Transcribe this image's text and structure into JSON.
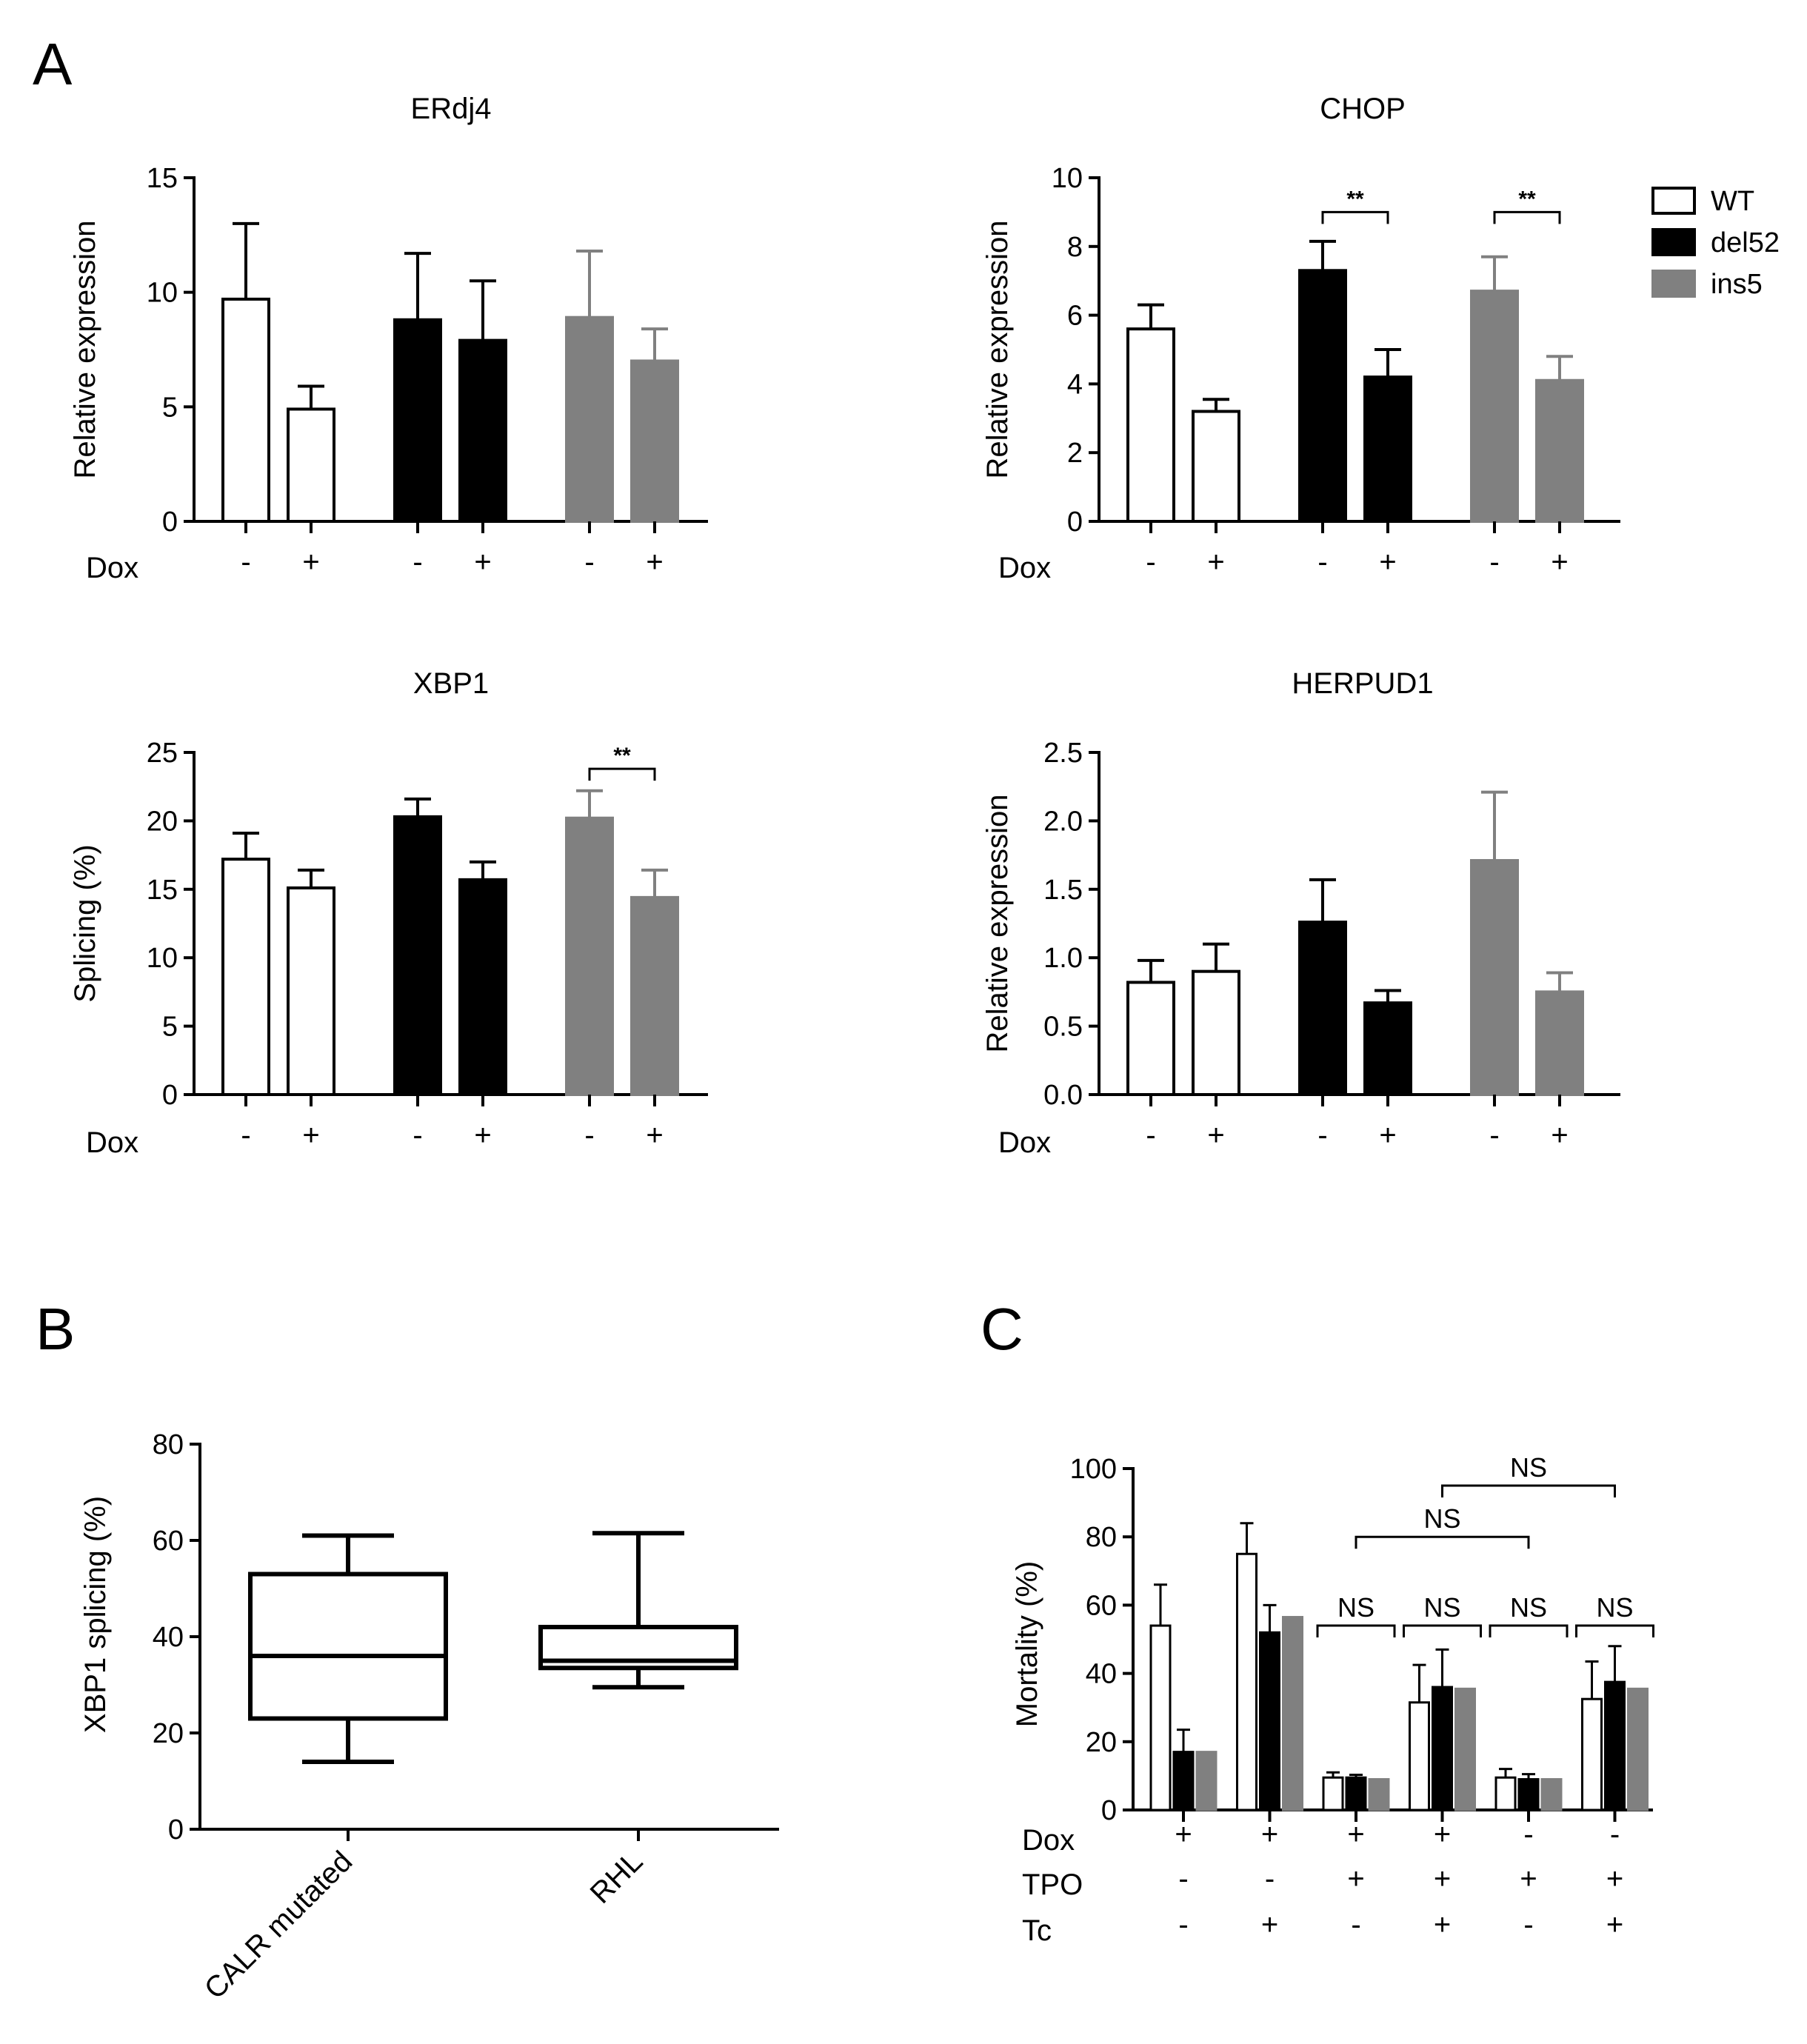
{
  "panel_labels": {
    "a": "A",
    "b": "B",
    "c": "C"
  },
  "colors": {
    "WT": "#ffffff",
    "del52": "#000000",
    "ins5": "#808080"
  },
  "legend": [
    {
      "label": "WT",
      "color": "#ffffff"
    },
    {
      "label": "del52",
      "color": "#000000"
    },
    {
      "label": "ins5",
      "color": "#808080"
    }
  ],
  "chart_data": [
    {
      "id": "erdj4",
      "type": "bar",
      "title": "ERdj4",
      "ylabel": "Relative expression",
      "ylim": [
        0,
        15
      ],
      "yticks": [
        "0",
        "5",
        "10",
        "15"
      ],
      "ytick_values": [
        0,
        5,
        10,
        15
      ],
      "condition_label": "Dox",
      "signs": [
        "-",
        "+",
        "-",
        "+",
        "-",
        "+"
      ],
      "bars": [
        {
          "group": "WT",
          "dox": "-",
          "value": 9.7,
          "error": 3.3
        },
        {
          "group": "WT",
          "dox": "+",
          "value": 4.9,
          "error": 1.0
        },
        {
          "group": "del52",
          "dox": "-",
          "value": 8.8,
          "error": 2.9
        },
        {
          "group": "del52",
          "dox": "+",
          "value": 7.9,
          "error": 2.6
        },
        {
          "group": "ins5",
          "dox": "-",
          "value": 8.9,
          "error": 2.9
        },
        {
          "group": "ins5",
          "dox": "+",
          "value": 7.0,
          "error": 1.4
        }
      ],
      "significance": []
    },
    {
      "id": "chop",
      "type": "bar",
      "title": "CHOP",
      "ylabel": "Relative expression",
      "ylim": [
        0,
        10
      ],
      "yticks": [
        "0",
        "2",
        "4",
        "6",
        "8",
        "10"
      ],
      "ytick_values": [
        0,
        2,
        4,
        6,
        8,
        10
      ],
      "condition_label": "Dox",
      "signs": [
        "-",
        "+",
        "-",
        "+",
        "-",
        "+"
      ],
      "bars": [
        {
          "group": "WT",
          "dox": "-",
          "value": 5.6,
          "error": 0.7
        },
        {
          "group": "WT",
          "dox": "+",
          "value": 3.2,
          "error": 0.35
        },
        {
          "group": "del52",
          "dox": "-",
          "value": 7.3,
          "error": 0.85
        },
        {
          "group": "del52",
          "dox": "+",
          "value": 4.2,
          "error": 0.8
        },
        {
          "group": "ins5",
          "dox": "-",
          "value": 6.7,
          "error": 1.0
        },
        {
          "group": "ins5",
          "dox": "+",
          "value": 4.1,
          "error": 0.7
        }
      ],
      "significance": [
        {
          "from": 2,
          "to": 3,
          "label": "**",
          "y": 9.0
        },
        {
          "from": 4,
          "to": 5,
          "label": "**",
          "y": 9.0
        }
      ]
    },
    {
      "id": "xbp1",
      "type": "bar",
      "title": "XBP1",
      "ylabel": "Splicing (%)",
      "ylim": [
        0,
        25
      ],
      "yticks": [
        "0",
        "5",
        "10",
        "15",
        "20",
        "25"
      ],
      "ytick_values": [
        0,
        5,
        10,
        15,
        20,
        25
      ],
      "condition_label": "Dox",
      "signs": [
        "-",
        "+",
        "-",
        "+",
        "-",
        "+"
      ],
      "bars": [
        {
          "group": "WT",
          "dox": "-",
          "value": 17.2,
          "error": 1.9
        },
        {
          "group": "WT",
          "dox": "+",
          "value": 15.1,
          "error": 1.3
        },
        {
          "group": "del52",
          "dox": "-",
          "value": 20.3,
          "error": 1.3
        },
        {
          "group": "del52",
          "dox": "+",
          "value": 15.7,
          "error": 1.3
        },
        {
          "group": "ins5",
          "dox": "-",
          "value": 20.2,
          "error": 2.0
        },
        {
          "group": "ins5",
          "dox": "+",
          "value": 14.4,
          "error": 2.0
        }
      ],
      "significance": [
        {
          "from": 4,
          "to": 5,
          "label": "**",
          "y": 23.8
        }
      ]
    },
    {
      "id": "herpud1",
      "type": "bar",
      "title": "HERPUD1",
      "ylabel": "Relative expression",
      "ylim": [
        0,
        2.5
      ],
      "yticks": [
        "0.0",
        "0.5",
        "1.0",
        "1.5",
        "2.0",
        "2.5"
      ],
      "ytick_values": [
        0,
        0.5,
        1.0,
        1.5,
        2.0,
        2.5
      ],
      "condition_label": "Dox",
      "signs": [
        "-",
        "+",
        "-",
        "+",
        "-",
        "+"
      ],
      "bars": [
        {
          "group": "WT",
          "dox": "-",
          "value": 0.82,
          "error": 0.16
        },
        {
          "group": "WT",
          "dox": "+",
          "value": 0.9,
          "error": 0.2
        },
        {
          "group": "del52",
          "dox": "-",
          "value": 1.26,
          "error": 0.31
        },
        {
          "group": "del52",
          "dox": "+",
          "value": 0.67,
          "error": 0.09
        },
        {
          "group": "ins5",
          "dox": "-",
          "value": 1.71,
          "error": 0.5
        },
        {
          "group": "ins5",
          "dox": "+",
          "value": 0.75,
          "error": 0.14
        }
      ],
      "significance": []
    },
    {
      "id": "xbp1-box",
      "type": "box",
      "ylabel": "XBP1 splicing (%)",
      "ylim": [
        0,
        80
      ],
      "yticks": [
        "0",
        "20",
        "40",
        "60",
        "80"
      ],
      "ytick_values": [
        0,
        20,
        40,
        60,
        80
      ],
      "categories": [
        "CALR mutated",
        "RHL"
      ],
      "boxes": [
        {
          "label": "CALR mutated",
          "min": 14,
          "q1": 23,
          "median": 36,
          "q3": 53,
          "max": 61
        },
        {
          "label": "RHL",
          "min": 29.5,
          "q1": 33.5,
          "median": 35,
          "q3": 42,
          "max": 61.5
        }
      ]
    },
    {
      "id": "mortality",
      "type": "bar",
      "ylabel": "Mortality (%)",
      "ylim": [
        0,
        100
      ],
      "yticks": [
        "0",
        "20",
        "40",
        "60",
        "80",
        "100"
      ],
      "ytick_values": [
        0,
        20,
        40,
        60,
        80,
        100
      ],
      "conditions": [
        {
          "label": "Dox",
          "values": [
            "+",
            "+",
            "+",
            "+",
            "-",
            "-"
          ]
        },
        {
          "label": "TPO",
          "values": [
            "-",
            "-",
            "+",
            "+",
            "+",
            "+"
          ]
        },
        {
          "label": "Tc",
          "values": [
            "-",
            "+",
            "-",
            "+",
            "-",
            "+"
          ]
        }
      ],
      "groups": [
        {
          "WT": 54,
          "WT_err": 12,
          "del52": 17,
          "del52_err": 6.5,
          "ins5": 17,
          "ins5_err": 0
        },
        {
          "WT": 75,
          "WT_err": 9,
          "del52": 52,
          "del52_err": 8,
          "ins5": 56.5,
          "ins5_err": 0
        },
        {
          "WT": 9.5,
          "WT_err": 1.5,
          "del52": 9.5,
          "del52_err": 0.8,
          "ins5": 9,
          "ins5_err": 0
        },
        {
          "WT": 31.5,
          "WT_err": 11,
          "del52": 36,
          "del52_err": 11,
          "ins5": 35.5,
          "ins5_err": 0
        },
        {
          "WT": 9.5,
          "WT_err": 2.5,
          "del52": 9,
          "del52_err": 1.5,
          "ins5": 9,
          "ins5_err": 0
        },
        {
          "WT": 32.5,
          "WT_err": 11,
          "del52": 37.5,
          "del52_err": 10.5,
          "ins5": 35.5,
          "ins5_err": 0
        }
      ],
      "significance": [
        {
          "from_group": 2,
          "to_group": 2,
          "label": "NS",
          "y": 54
        },
        {
          "from_group": 3,
          "to_group": 3,
          "label": "NS",
          "y": 54
        },
        {
          "from_group": 4,
          "to_group": 4,
          "label": "NS",
          "y": 54
        },
        {
          "from_group": 5,
          "to_group": 5,
          "label": "NS",
          "y": 54
        },
        {
          "from_group": 2,
          "to_group": 4,
          "label": "NS",
          "y": 80
        },
        {
          "from_group": 3,
          "to_group": 5,
          "label": "NS",
          "y": 95
        }
      ]
    }
  ]
}
